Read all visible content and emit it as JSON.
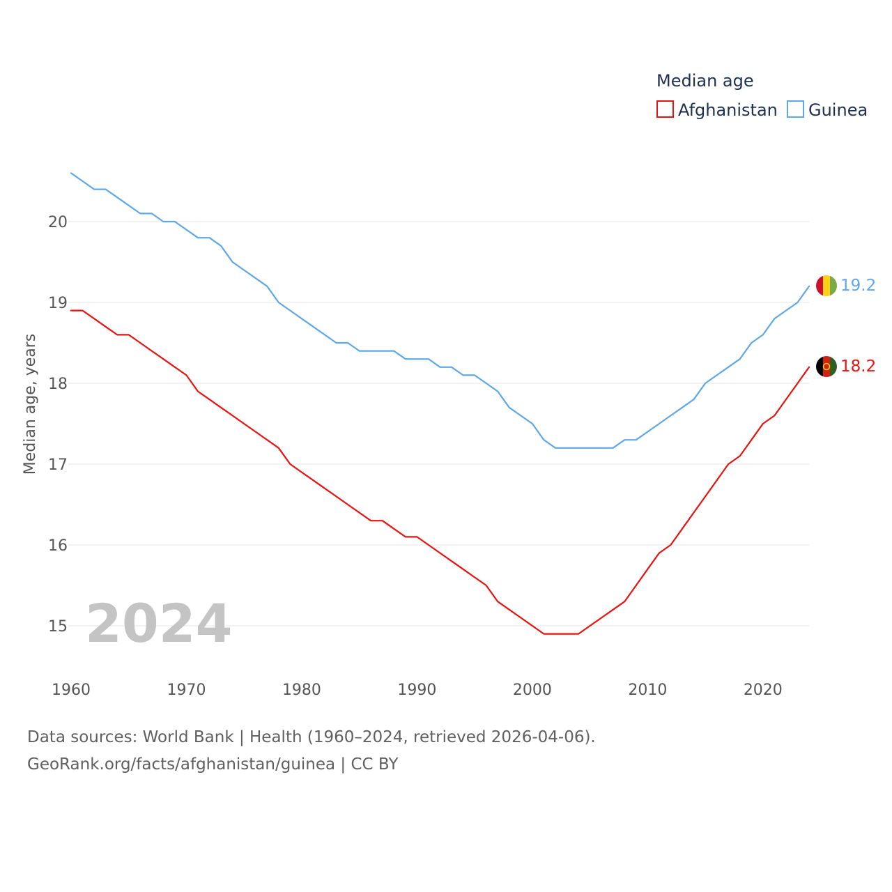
{
  "chart_data": {
    "type": "line",
    "title": "Median age",
    "ylabel": "Median age, years",
    "xlabel": "",
    "highlight_year": "2024",
    "xlim": [
      1960,
      2024
    ],
    "ylim": [
      14.5,
      20.7
    ],
    "xticks": [
      1960,
      1970,
      1980,
      1990,
      2000,
      2010,
      2020
    ],
    "yticks": [
      15,
      16,
      17,
      18,
      19,
      20
    ],
    "grid": true,
    "legend_placement": "top-right",
    "x": [
      1960,
      1961,
      1962,
      1963,
      1964,
      1965,
      1966,
      1967,
      1968,
      1969,
      1970,
      1971,
      1972,
      1973,
      1974,
      1975,
      1976,
      1977,
      1978,
      1979,
      1980,
      1981,
      1982,
      1983,
      1984,
      1985,
      1986,
      1987,
      1988,
      1989,
      1990,
      1991,
      1992,
      1993,
      1994,
      1995,
      1996,
      1997,
      1998,
      1999,
      2000,
      2001,
      2002,
      2003,
      2004,
      2005,
      2006,
      2007,
      2008,
      2009,
      2010,
      2011,
      2012,
      2013,
      2014,
      2015,
      2016,
      2017,
      2018,
      2019,
      2020,
      2021,
      2022,
      2023,
      2024
    ],
    "series": [
      {
        "name": "Afghanistan",
        "color": "#e8120f",
        "end_label": "18.2",
        "values": [
          18.9,
          18.9,
          18.8,
          18.7,
          18.6,
          18.6,
          18.5,
          18.4,
          18.3,
          18.2,
          18.1,
          17.9,
          17.8,
          17.7,
          17.6,
          17.5,
          17.4,
          17.3,
          17.2,
          17.0,
          16.9,
          16.8,
          16.7,
          16.6,
          16.5,
          16.4,
          16.3,
          16.3,
          16.2,
          16.1,
          16.1,
          16.0,
          15.9,
          15.8,
          15.7,
          15.6,
          15.5,
          15.3,
          15.2,
          15.1,
          15.0,
          14.9,
          14.9,
          14.9,
          14.9,
          15.0,
          15.1,
          15.2,
          15.3,
          15.5,
          15.7,
          15.9,
          16.0,
          16.2,
          16.4,
          16.6,
          16.8,
          17.0,
          17.1,
          17.3,
          17.5,
          17.6,
          17.8,
          18.0,
          18.2
        ]
      },
      {
        "name": "Guinea",
        "color": "#5ea7e8",
        "end_label": "19.2",
        "values": [
          20.6,
          20.5,
          20.4,
          20.4,
          20.3,
          20.2,
          20.1,
          20.1,
          20.0,
          20.0,
          19.9,
          19.8,
          19.8,
          19.7,
          19.5,
          19.4,
          19.3,
          19.2,
          19.0,
          18.9,
          18.8,
          18.7,
          18.6,
          18.5,
          18.5,
          18.4,
          18.4,
          18.4,
          18.4,
          18.3,
          18.3,
          18.3,
          18.2,
          18.2,
          18.1,
          18.1,
          18.0,
          17.9,
          17.7,
          17.6,
          17.5,
          17.3,
          17.2,
          17.2,
          17.2,
          17.2,
          17.2,
          17.2,
          17.3,
          17.3,
          17.4,
          17.5,
          17.6,
          17.7,
          17.8,
          18.0,
          18.1,
          18.2,
          18.3,
          18.5,
          18.6,
          18.8,
          18.9,
          19.0,
          19.2
        ]
      }
    ]
  },
  "footer": {
    "line1": "Data sources: World Bank | Health (1960–2024, retrieved 2026-04-06).",
    "line2": "GeoRank.org/facts/afghanistan/guinea | CC BY"
  },
  "flags": {
    "afghanistan": {
      "icon": "afghanistan-flag-icon",
      "colors": [
        "#000000",
        "#d32011",
        "#007a36"
      ]
    },
    "guinea": {
      "icon": "guinea-flag-icon",
      "colors": [
        "#ce1126",
        "#fcd116",
        "#7aab4a"
      ]
    }
  }
}
